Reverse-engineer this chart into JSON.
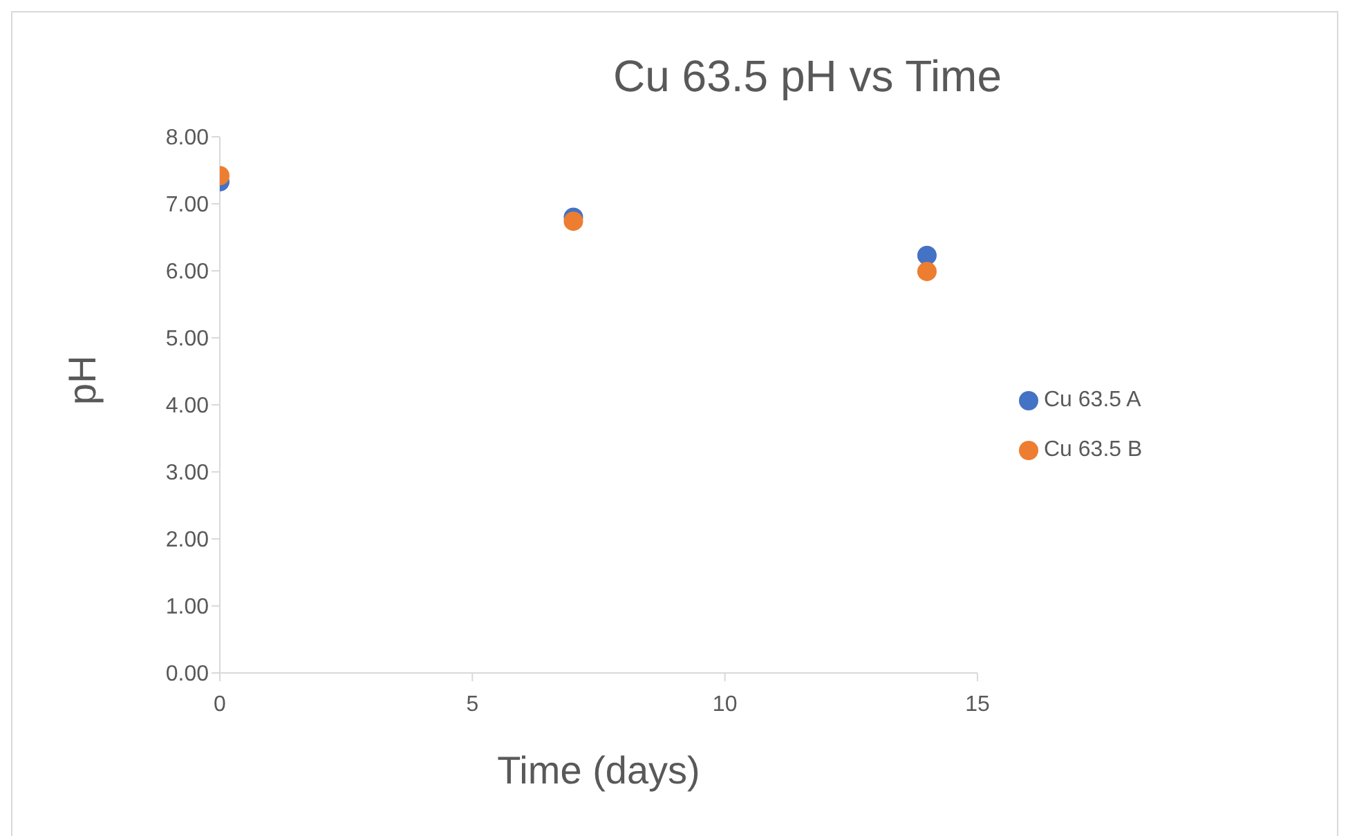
{
  "chart_data": {
    "type": "scatter",
    "title": "Cu 63.5 pH vs Time",
    "xlabel": "Time (days)",
    "ylabel": "pH",
    "x": [
      0,
      7,
      14
    ],
    "series": [
      {
        "name": "Cu 63.5 A",
        "color": "#4472c4",
        "values": [
          7.33,
          6.8,
          6.23
        ]
      },
      {
        "name": "Cu 63.5 B",
        "color": "#ed7d31",
        "values": [
          7.42,
          6.74,
          5.99
        ]
      }
    ],
    "xlim": [
      0,
      15
    ],
    "xticks": [
      0,
      5,
      10,
      15
    ],
    "ylim": [
      0,
      8
    ],
    "yticks": [
      {
        "value": 0,
        "label": "0.00"
      },
      {
        "value": 1,
        "label": "1.00"
      },
      {
        "value": 2,
        "label": "2.00"
      },
      {
        "value": 3,
        "label": "3.00"
      },
      {
        "value": 4,
        "label": "4.00"
      },
      {
        "value": 5,
        "label": "5.00"
      },
      {
        "value": 6,
        "label": "6.00"
      },
      {
        "value": 7,
        "label": "7.00"
      },
      {
        "value": 8,
        "label": "8.00"
      }
    ],
    "grid": false,
    "legend": "right",
    "marker": "circle"
  }
}
